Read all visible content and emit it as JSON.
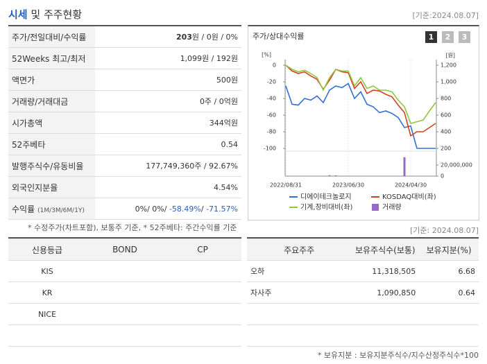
{
  "header": {
    "title_accent": "시세",
    "title": "및 주주현황",
    "date": "[기준:2024.08.07]"
  },
  "quote": {
    "rows": [
      {
        "label": "주가/전일대비/수익률",
        "value": [
          {
            "text": "203",
            "bold": true
          },
          {
            "text": "원 / 0원 / 0%"
          }
        ]
      },
      {
        "label": "52Weeks 최고/최저",
        "value": [
          {
            "text": "1,099원 / 192원"
          }
        ]
      },
      {
        "label": "액면가",
        "value": [
          {
            "text": "500원"
          }
        ]
      },
      {
        "label": "거래량/거래대금",
        "value": [
          {
            "text": "0주 / 0억원"
          }
        ]
      },
      {
        "label": "시가총액",
        "value": [
          {
            "text": "344억원"
          }
        ]
      },
      {
        "label": "52주베타",
        "value": [
          {
            "text": "0.54"
          }
        ]
      },
      {
        "label": "발행주식수/유동비율",
        "value": [
          {
            "text": "177,749,360주 / 92.67%"
          }
        ]
      },
      {
        "label": "외국인지분율",
        "value": [
          {
            "text": "4.54%"
          }
        ]
      },
      {
        "label": "수익률",
        "label_note": "(1M/3M/6M/1Y)",
        "value": [
          {
            "text": "0%/ 0%/ "
          },
          {
            "text": "-58.49%",
            "color": "#2b5fb4"
          },
          {
            "text": "/ "
          },
          {
            "text": "-71.57%",
            "color": "#2b5fb4"
          }
        ]
      }
    ],
    "note": "* 수정주가(차트포함), 보통주 기준, * 52주베타: 주간수익률 기준"
  },
  "chart_data": {
    "type": "line",
    "title": "주가/상대수익률",
    "buttons": [
      "1",
      "2",
      "3"
    ],
    "ylabel": "[%]",
    "y2label": "[원]",
    "categories": [
      "2022/08/31",
      null,
      null,
      null,
      null,
      null,
      null,
      null,
      null,
      null,
      "2023/06/30",
      null,
      null,
      null,
      null,
      null,
      null,
      null,
      null,
      null,
      "2024/04/30",
      null,
      null,
      null,
      null
    ],
    "ylim": [
      -110,
      10
    ],
    "yticks": [
      0,
      -20,
      -40,
      -60,
      -80,
      -100
    ],
    "y2lim": [
      100,
      1300
    ],
    "y2ticks": [
      {
        "value": 1200,
        "label": "1,200"
      },
      {
        "value": 1000,
        "label": "1,000"
      },
      800,
      600,
      400,
      200
    ],
    "y3lim": [
      0,
      40000000
    ],
    "y3ticks": [
      {
        "value": 20000000,
        "label": "20,000,000"
      },
      0
    ],
    "series": [
      {
        "name": "디에이테크놀로지",
        "color": "#2f6fd6",
        "axis": "y2",
        "values": [
          950,
          730,
          720,
          800,
          780,
          830,
          750,
          900,
          950,
          930,
          980,
          800,
          880,
          730,
          700,
          630,
          650,
          620,
          570,
          450,
          470,
          200,
          200,
          200,
          200
        ]
      },
      {
        "name": "KOSDAQ대비(좌)",
        "color": "#d0421b",
        "values": [
          0,
          -7,
          -10,
          -8,
          -13,
          -17,
          -29,
          -18,
          -5,
          -8,
          -9,
          -28,
          -20,
          -34,
          -30,
          -31,
          -35,
          -38,
          -48,
          -57,
          -85,
          -80,
          -80,
          -75,
          -70
        ]
      },
      {
        "name": "기계,장비대비(좌)",
        "color": "#8dc63f",
        "values": [
          0,
          -5,
          -8,
          -6,
          -10,
          -15,
          -30,
          -15,
          -5,
          -7,
          -7,
          -25,
          -15,
          -28,
          -25,
          -30,
          -30,
          -32,
          -42,
          -50,
          -70,
          -68,
          -66,
          -55,
          -45
        ]
      },
      {
        "name": "거래량",
        "color": "#9966cc",
        "axis": "y3",
        "type": "bar",
        "values": [
          0,
          0,
          0,
          0,
          0,
          0,
          500000,
          1500000,
          1200000,
          300000,
          0,
          0,
          0,
          0,
          0,
          0,
          0,
          0,
          0,
          34000000,
          0,
          0,
          0,
          0,
          0
        ]
      }
    ]
  },
  "credit": {
    "headers": [
      "신용등급",
      "BOND",
      "CP"
    ],
    "rows": [
      [
        "KIS"
      ],
      [
        "KR"
      ],
      [
        "NICE"
      ]
    ]
  },
  "holders": {
    "date": "[기준: 2024.08.07]",
    "headers": [
      "주요주주",
      "보유주식수(보통)",
      "보유지분(%)"
    ],
    "rows": [
      [
        "오하",
        "11,318,505",
        "6.68"
      ],
      [
        "자사주",
        "1,090,850",
        "0.64"
      ]
    ],
    "note": "* 보유지분 : 보유지분주식수/지수산정주식수*100"
  }
}
